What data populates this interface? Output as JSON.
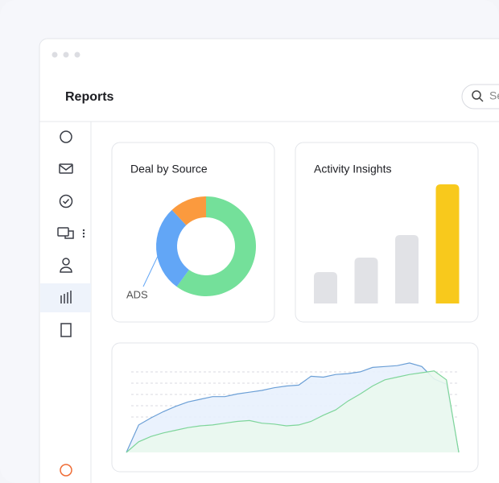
{
  "header": {
    "title": "Reports",
    "search_placeholder": "Se"
  },
  "chart_data": [
    {
      "type": "pie",
      "title": "Deal by Source",
      "categories": [
        null,
        "ADS",
        null
      ],
      "values": [
        60,
        28,
        12
      ],
      "colors": [
        "#74e09a",
        "#62a6f6",
        "#fb9a3e"
      ]
    },
    {
      "type": "bar",
      "title": "Activity Insights",
      "values": [
        39,
        57,
        85,
        148
      ],
      "colors": [
        "#e1e2e6",
        "#e1e2e6",
        "#e1e2e6",
        "#f8c91c"
      ]
    },
    {
      "type": "area",
      "series": [
        {
          "color": "#6b9fd6",
          "values": [
            0,
            31,
            39,
            46,
            52,
            57,
            60,
            63,
            63,
            66,
            68,
            70,
            73,
            75,
            76,
            86,
            85,
            88,
            89,
            91,
            96,
            97,
            98,
            101,
            97,
            83,
            77,
            0
          ]
        },
        {
          "color": "#7ed59a",
          "values": [
            0,
            12,
            18,
            22,
            25,
            28,
            30,
            31,
            33,
            35,
            36,
            33,
            32,
            30,
            31,
            35,
            42,
            48,
            58,
            66,
            75,
            82,
            85,
            88,
            90,
            92,
            82,
            0
          ]
        }
      ]
    }
  ]
}
